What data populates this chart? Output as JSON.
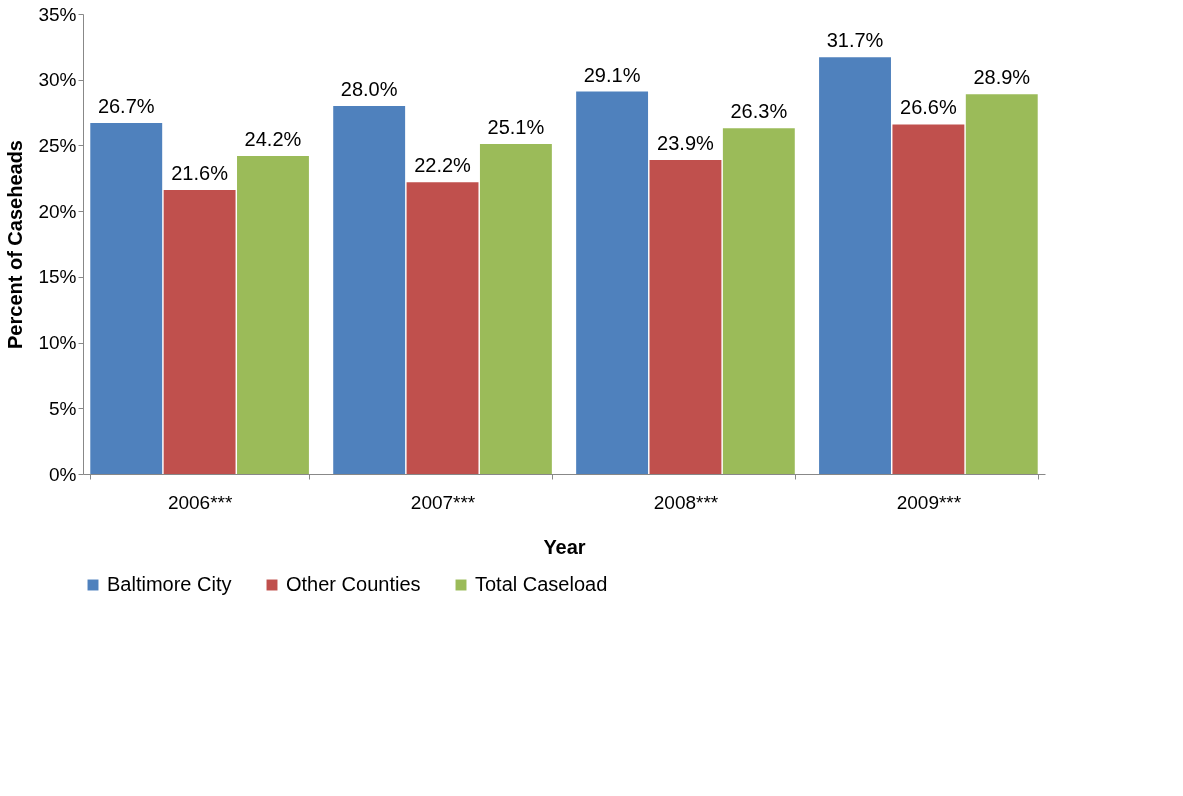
{
  "chart_data": {
    "type": "bar",
    "xlabel": "Year",
    "ylabel": "Percent of Caseheads",
    "categories": [
      "2006***",
      "2007***",
      "2008***",
      "2009***"
    ],
    "series": [
      {
        "name": "Baltimore City",
        "color": "#4f81bd",
        "values": [
          26.7,
          28.0,
          29.1,
          31.7
        ],
        "value_labels": [
          "26.7%",
          "28.0%",
          "29.1%",
          "31.7%"
        ]
      },
      {
        "name": "Other Counties",
        "color": "#c0504d",
        "values": [
          21.6,
          22.2,
          23.9,
          26.6
        ],
        "value_labels": [
          "21.6%",
          "22.2%",
          "23.9%",
          "26.6%"
        ]
      },
      {
        "name": "Total Caseload",
        "color": "#9bbb59",
        "values": [
          24.2,
          25.1,
          26.3,
          28.9
        ],
        "value_labels": [
          "24.2%",
          "25.1%",
          "26.3%",
          "28.9%"
        ]
      }
    ],
    "ylim": [
      0,
      35
    ],
    "yticks": [
      {
        "value": 0,
        "label": "0%"
      },
      {
        "value": 5,
        "label": "5%"
      },
      {
        "value": 10,
        "label": "10%"
      },
      {
        "value": 15,
        "label": "15%"
      },
      {
        "value": 20,
        "label": "20%"
      },
      {
        "value": 25,
        "label": "25%"
      },
      {
        "value": 30,
        "label": "30%"
      },
      {
        "value": 35,
        "label": "35%"
      }
    ],
    "legend": "bottom",
    "grid": false
  }
}
